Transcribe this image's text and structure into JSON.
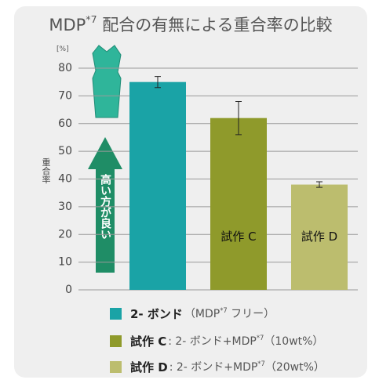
{
  "chart_data": {
    "type": "bar",
    "title": "MDP*7 配合の有無による重合率の比較",
    "y_unit": "[%]",
    "y_label": "重合率",
    "annotation": "高い方が良い",
    "categories": [
      "2- ボンド",
      "試作 C",
      "試作 D"
    ],
    "descriptions": [
      "（MDP*7 フリー）",
      ": 2- ボンド+MDP*7（10wt%）",
      ": 2- ボンド+MDP*7（20wt%）"
    ],
    "values": [
      75,
      62,
      38
    ],
    "errors": [
      2,
      6,
      1
    ],
    "colors": [
      "#1aa3a6",
      "#8f9a2b",
      "#bcbd6e"
    ],
    "inner_labels": [
      false,
      true,
      true
    ],
    "ylim": [
      0,
      80
    ],
    "yticks": [
      0,
      10,
      20,
      30,
      40,
      50,
      60,
      70,
      80
    ],
    "grid": true
  }
}
